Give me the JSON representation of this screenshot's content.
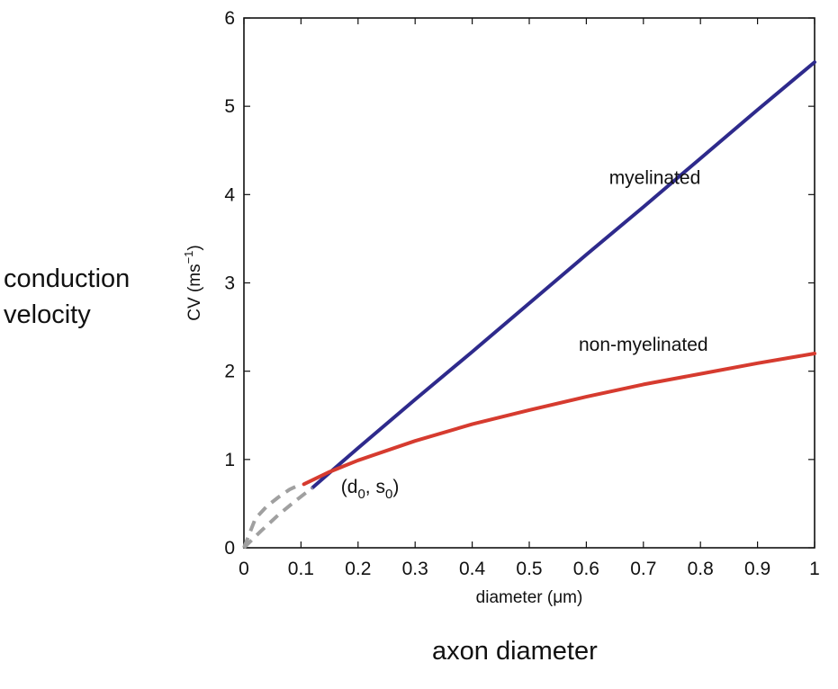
{
  "outer_labels": {
    "y_line1": "conduction",
    "y_line2": "velocity",
    "x": "axon diameter"
  },
  "chart_data": {
    "type": "line",
    "title": "",
    "xlabel_prefix": "diameter (",
    "xlabel_unit": "μm",
    "xlabel_suffix": ")",
    "ylabel_prefix": "CV (ms",
    "ylabel_sup": "−1",
    "ylabel_suffix": ")",
    "xlim": [
      0,
      1
    ],
    "ylim": [
      0,
      6
    ],
    "xticks": [
      "0",
      "0.1",
      "0.2",
      "0.3",
      "0.4",
      "0.5",
      "0.6",
      "0.7",
      "0.8",
      "0.9",
      "1"
    ],
    "yticks": [
      "0",
      "1",
      "2",
      "3",
      "4",
      "5",
      "6"
    ],
    "grid": false,
    "series": [
      {
        "name": "myelinated",
        "color": "#2e2a8c",
        "style": "solid",
        "x": [
          0.12,
          0.15,
          0.2,
          0.3,
          0.4,
          0.5,
          0.6,
          0.7,
          0.8,
          0.9,
          1.0
        ],
        "y": [
          0.68,
          0.85,
          1.13,
          1.68,
          2.22,
          2.77,
          3.32,
          3.86,
          4.41,
          4.96,
          5.5
        ]
      },
      {
        "name": "non-myelinated",
        "color": "#d63b2f",
        "style": "solid",
        "x": [
          0.105,
          0.15,
          0.2,
          0.3,
          0.4,
          0.5,
          0.6,
          0.7,
          0.8,
          0.9,
          1.0
        ],
        "y": [
          0.72,
          0.86,
          0.99,
          1.21,
          1.4,
          1.56,
          1.71,
          1.85,
          1.97,
          2.09,
          2.2
        ]
      },
      {
        "name": "",
        "color": "#a0a0a0",
        "style": "dashed",
        "x": [
          0.0,
          0.02,
          0.04,
          0.06,
          0.08,
          0.1
        ],
        "y": [
          0.0,
          0.33,
          0.47,
          0.57,
          0.66,
          0.72
        ]
      },
      {
        "name": "",
        "color": "#a0a0a0",
        "style": "dashed",
        "x": [
          0.0,
          0.03,
          0.06,
          0.09,
          0.12
        ],
        "y": [
          0.0,
          0.19,
          0.37,
          0.53,
          0.68
        ]
      }
    ],
    "annotations": [
      {
        "text": "myelinated",
        "x": 0.72,
        "y": 4.12
      },
      {
        "text": "non-myelinated",
        "x": 0.7,
        "y": 2.23
      },
      {
        "text_main": "(d",
        "sub1": "0",
        "mid": ", s",
        "sub2": "0",
        "close": ")",
        "x": 0.17,
        "y": 0.62
      }
    ]
  }
}
